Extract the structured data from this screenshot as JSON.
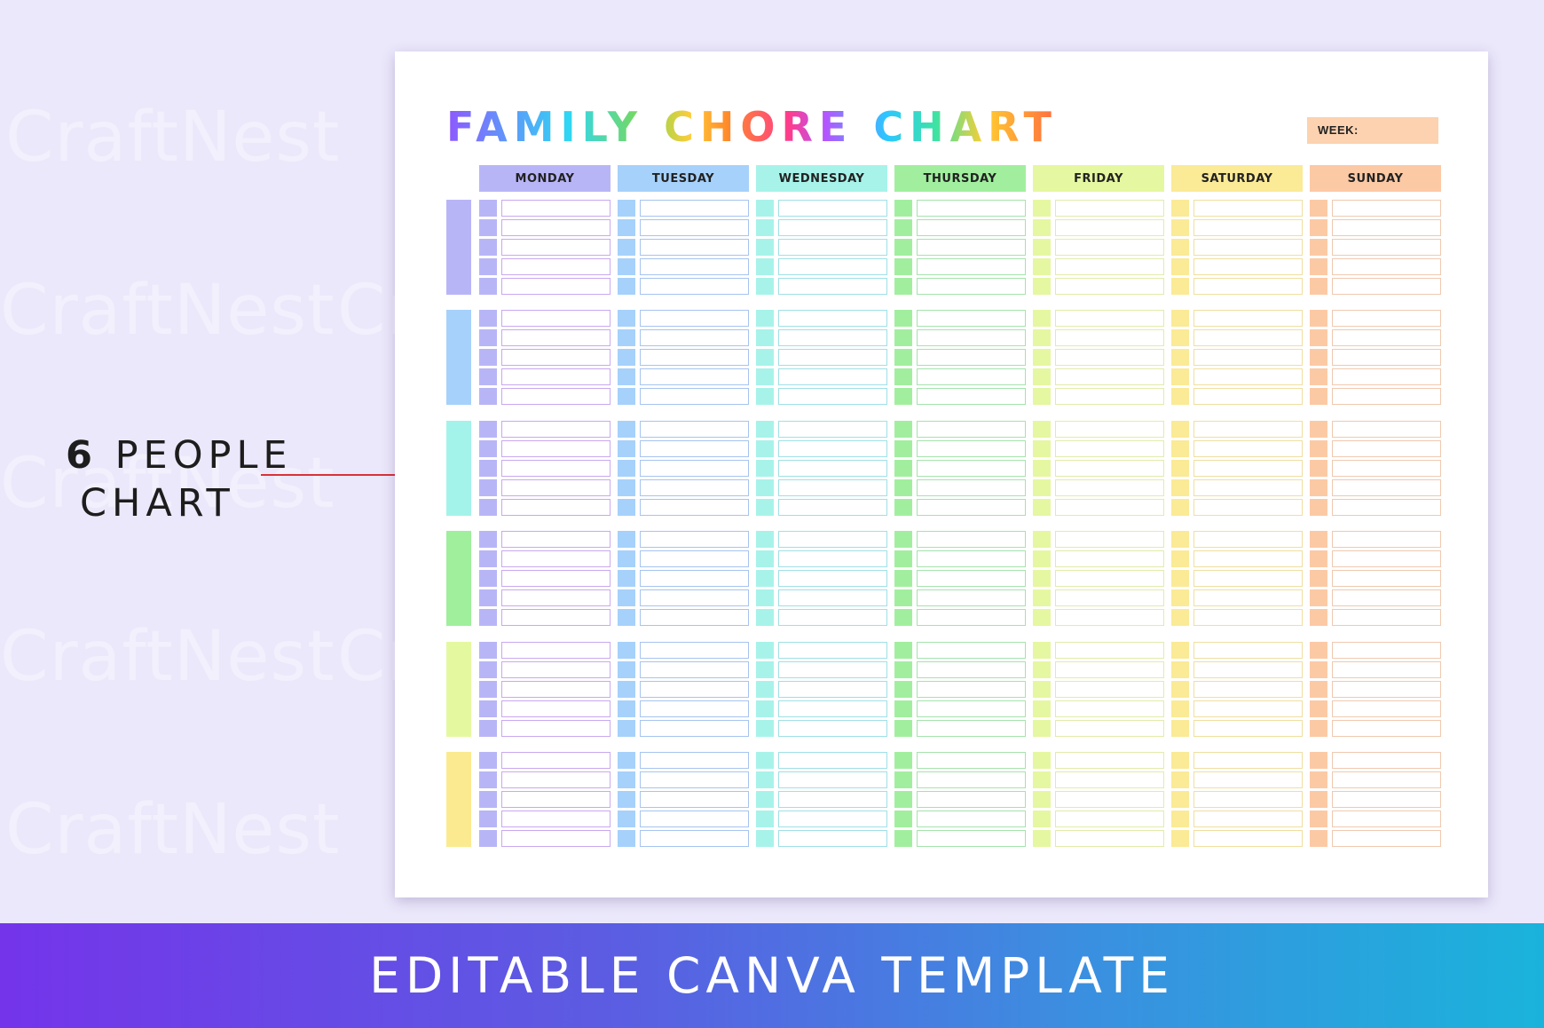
{
  "watermark": {
    "text": "CraftNest"
  },
  "side_label": {
    "number": "6",
    "word1": "PEOPLE",
    "word2": "CHART"
  },
  "sheet": {
    "title": "FAMILY CHORE CHART",
    "week_label": "WEEK:",
    "days": [
      {
        "label": "MONDAY",
        "color": "#b8b5f7",
        "line_color": "#c9a8f0"
      },
      {
        "label": "TUESDAY",
        "color": "#a6d1fb",
        "line_color": "#a6c4f0"
      },
      {
        "label": "WEDNESDAY",
        "color": "#a7f3ea",
        "line_color": "#9fe0e6"
      },
      {
        "label": "THURSDAY",
        "color": "#a1ef9e",
        "line_color": "#a5e3ad"
      },
      {
        "label": "FRIDAY",
        "color": "#e5f7a0",
        "line_color": "#e3ebaa"
      },
      {
        "label": "SATURDAY",
        "color": "#fbea96",
        "line_color": "#f0dfa0"
      },
      {
        "label": "SUNDAY",
        "color": "#fcc9a5",
        "line_color": "#f0c9b0"
      }
    ],
    "people": [
      {
        "color": "#b8b5f7"
      },
      {
        "color": "#a6d1fb"
      },
      {
        "color": "#a3f3ea"
      },
      {
        "color": "#9fef9c"
      },
      {
        "color": "#e4f99f"
      },
      {
        "color": "#fbea8f"
      }
    ],
    "rows_per_person": 5
  },
  "banner": {
    "text": "EDITABLE CANVA TEMPLATE"
  }
}
